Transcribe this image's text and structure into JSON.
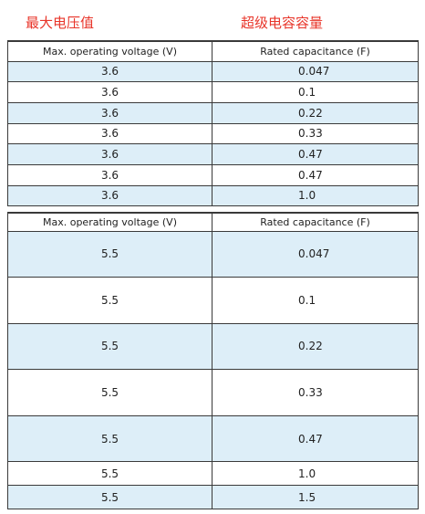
{
  "headings": {
    "voltage": "最大电压值",
    "capacitance": "超级电容容量"
  },
  "table_1": {
    "headers": [
      "Max. operating voltage (V)",
      "Rated capacitance (F)"
    ],
    "rows": [
      [
        "3.6",
        "0.047"
      ],
      [
        "3.6",
        "0.1"
      ],
      [
        "3.6",
        "0.22"
      ],
      [
        "3.6",
        "0.33"
      ],
      [
        "3.6",
        "0.47"
      ],
      [
        "3.6",
        "0.47"
      ],
      [
        "3.6",
        "1.0"
      ]
    ]
  },
  "table_2": {
    "headers": [
      "Max. operating voltage (V)",
      "Rated capacitance (F)"
    ],
    "rows": [
      [
        "5.5",
        "0.047"
      ],
      [
        "5.5",
        "0.1"
      ],
      [
        "5.5",
        "0.22"
      ],
      [
        "5.5",
        "0.33"
      ],
      [
        "5.5",
        "0.47"
      ],
      [
        "5.5",
        "1.0"
      ],
      [
        "5.5",
        "1.5"
      ]
    ]
  },
  "colors": {
    "heading_red": "#e8352a",
    "row_tint": "#ddeef8",
    "border": "#3a3a3a"
  }
}
